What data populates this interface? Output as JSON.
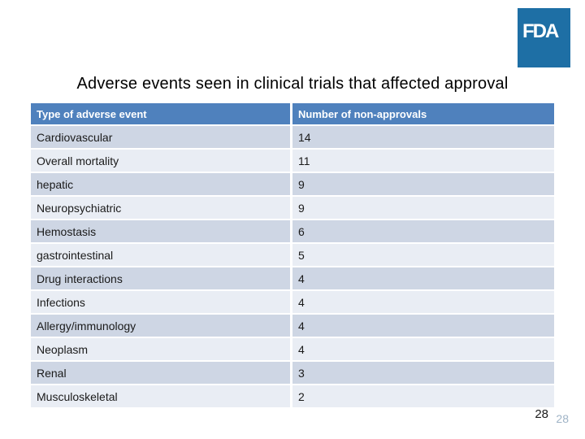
{
  "slide": {
    "title": "Adverse events seen in clinical trials that affected approval",
    "page_number": "28",
    "page_number_secondary": "28"
  },
  "logo": {
    "text": "FDA",
    "background_color": "#1e6fa5",
    "text_color": "#ffffff"
  },
  "table": {
    "headers": {
      "type": "Type of adverse event",
      "count": "Number of non-approvals"
    },
    "rows": [
      {
        "type": "Cardiovascular",
        "count": "14"
      },
      {
        "type": "Overall mortality",
        "count": "11"
      },
      {
        "type": "hepatic",
        "count": "9"
      },
      {
        "type": "Neuropsychiatric",
        "count": "9"
      },
      {
        "type": "Hemostasis",
        "count": "6"
      },
      {
        "type": "gastrointestinal",
        "count": "5"
      },
      {
        "type": "Drug interactions",
        "count": "4"
      },
      {
        "type": "Infections",
        "count": "4"
      },
      {
        "type": "Allergy/immunology",
        "count": "4"
      },
      {
        "type": "Neoplasm",
        "count": "4"
      },
      {
        "type": "Renal",
        "count": "3"
      },
      {
        "type": "Musculoskeletal",
        "count": "2"
      }
    ],
    "colors": {
      "header_background": "#4f81bd",
      "header_text": "#ffffff",
      "band_dark": "#ced6e4",
      "band_light": "#e9edf4",
      "cell_border": "#ffffff",
      "body_text": "#1a1a1a"
    }
  },
  "colors": {
    "slide_background": "#ffffff",
    "title_text": "#000000",
    "page_number_secondary_text": "#9fb3c6"
  }
}
